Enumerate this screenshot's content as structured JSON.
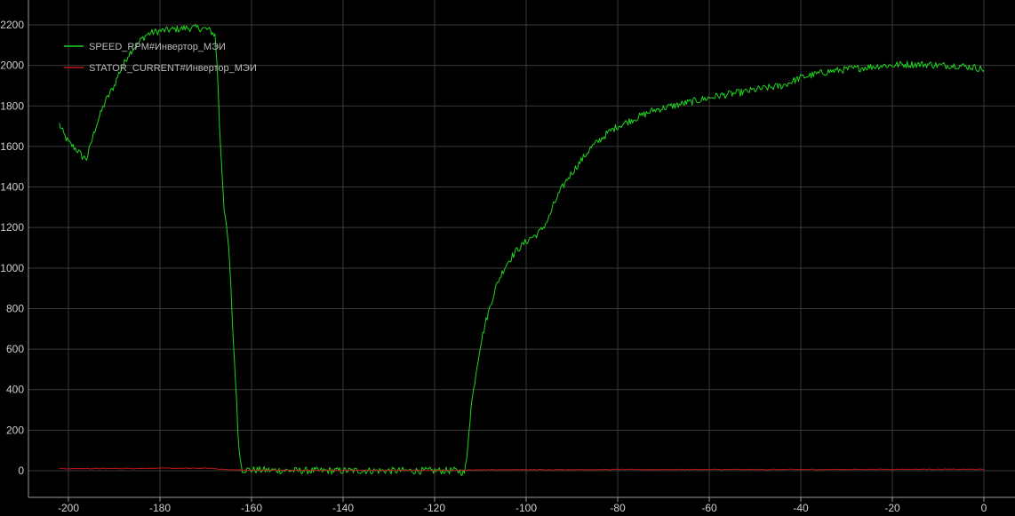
{
  "chart_data": {
    "type": "line",
    "title": "",
    "xlabel": "",
    "ylabel": "",
    "xlim": [
      -205,
      2
    ],
    "ylim": [
      -80,
      2260
    ],
    "x_ticks": [
      -200,
      -180,
      -160,
      -140,
      -120,
      -100,
      -80,
      -60,
      -40,
      -20,
      0
    ],
    "y_ticks": [
      0,
      200,
      400,
      600,
      800,
      1000,
      1200,
      1400,
      1600,
      1800,
      2000,
      2200
    ],
    "x_tick_labels": [
      "-200",
      "-180",
      "-160",
      "-140",
      "-120",
      "-100",
      "-80",
      "-60",
      "-40",
      "-20",
      "0"
    ],
    "y_tick_labels": [
      "0",
      "200",
      "400",
      "600",
      "800",
      "1000",
      "1200",
      "1400",
      "1600",
      "1800",
      "2000",
      "2200"
    ],
    "grid": true,
    "legend_position": "top-left",
    "series": [
      {
        "name": "SPEED_RPM#Инвертор_МЭИ",
        "color": "#1fd41f",
        "points": [
          [
            -202,
            1710
          ],
          [
            -201,
            1660
          ],
          [
            -200,
            1620
          ],
          [
            -199,
            1600
          ],
          [
            -198,
            1580
          ],
          [
            -197,
            1550
          ],
          [
            -196,
            1540
          ],
          [
            -195,
            1620
          ],
          [
            -194,
            1700
          ],
          [
            -193,
            1760
          ],
          [
            -192,
            1820
          ],
          [
            -191,
            1860
          ],
          [
            -190,
            1900
          ],
          [
            -189,
            1960
          ],
          [
            -188,
            2000
          ],
          [
            -187,
            2050
          ],
          [
            -186,
            2080
          ],
          [
            -185,
            2100
          ],
          [
            -184,
            2130
          ],
          [
            -183,
            2150
          ],
          [
            -182,
            2160
          ],
          [
            -180,
            2170
          ],
          [
            -178,
            2175
          ],
          [
            -176,
            2180
          ],
          [
            -174,
            2185
          ],
          [
            -172,
            2185
          ],
          [
            -170,
            2180
          ],
          [
            -169,
            2170
          ],
          [
            -168,
            2150
          ],
          [
            -167.5,
            2000
          ],
          [
            -167,
            1700
          ],
          [
            -166,
            1300
          ],
          [
            -165,
            1100
          ],
          [
            -164.5,
            900
          ],
          [
            -164,
            650
          ],
          [
            -163.5,
            450
          ],
          [
            -163,
            200
          ],
          [
            -162.5,
            60
          ],
          [
            -162,
            5
          ],
          [
            -150,
            0
          ],
          [
            -140,
            0
          ],
          [
            -130,
            0
          ],
          [
            -120,
            0
          ],
          [
            -115,
            0
          ],
          [
            -113.5,
            -10
          ],
          [
            -113,
            50
          ],
          [
            -112.5,
            200
          ],
          [
            -112,
            320
          ],
          [
            -111,
            480
          ],
          [
            -110,
            620
          ],
          [
            -109,
            720
          ],
          [
            -108,
            800
          ],
          [
            -107,
            880
          ],
          [
            -106,
            940
          ],
          [
            -105,
            990
          ],
          [
            -104,
            1030
          ],
          [
            -103,
            1060
          ],
          [
            -102,
            1090
          ],
          [
            -101,
            1110
          ],
          [
            -100,
            1130
          ],
          [
            -99,
            1150
          ],
          [
            -98,
            1160
          ],
          [
            -97,
            1180
          ],
          [
            -96,
            1210
          ],
          [
            -95,
            1250
          ],
          [
            -94,
            1310
          ],
          [
            -93,
            1360
          ],
          [
            -92,
            1400
          ],
          [
            -91,
            1440
          ],
          [
            -90,
            1470
          ],
          [
            -89,
            1500
          ],
          [
            -88,
            1530
          ],
          [
            -87,
            1560
          ],
          [
            -86,
            1590
          ],
          [
            -85,
            1610
          ],
          [
            -84,
            1630
          ],
          [
            -83,
            1650
          ],
          [
            -82,
            1670
          ],
          [
            -80,
            1700
          ],
          [
            -78,
            1720
          ],
          [
            -76,
            1740
          ],
          [
            -74,
            1760
          ],
          [
            -72,
            1780
          ],
          [
            -70,
            1790
          ],
          [
            -68,
            1800
          ],
          [
            -66,
            1810
          ],
          [
            -64,
            1820
          ],
          [
            -62,
            1830
          ],
          [
            -60,
            1840
          ],
          [
            -58,
            1850
          ],
          [
            -55,
            1860
          ],
          [
            -52,
            1870
          ],
          [
            -50,
            1880
          ],
          [
            -47,
            1890
          ],
          [
            -44,
            1900
          ],
          [
            -42,
            1920
          ],
          [
            -40,
            1940
          ],
          [
            -38,
            1950
          ],
          [
            -36,
            1960
          ],
          [
            -34,
            1970
          ],
          [
            -32,
            1975
          ],
          [
            -30,
            1980
          ],
          [
            -28,
            1985
          ],
          [
            -26,
            1990
          ],
          [
            -24,
            1995
          ],
          [
            -22,
            2000
          ],
          [
            -20,
            2000
          ],
          [
            -18,
            2005
          ],
          [
            -16,
            2005
          ],
          [
            -14,
            2005
          ],
          [
            -12,
            2005
          ],
          [
            -10,
            2000
          ],
          [
            -8,
            2000
          ],
          [
            -6,
            2000
          ],
          [
            -4,
            1995
          ],
          [
            -2,
            1990
          ],
          [
            0,
            1980
          ]
        ]
      },
      {
        "name": "STATOR_CURRENT#Инвертор_МЭИ",
        "color": "#c01818",
        "points": [
          [
            -202,
            10
          ],
          [
            -190,
            11
          ],
          [
            -180,
            12
          ],
          [
            -170,
            12
          ],
          [
            -168,
            10
          ],
          [
            -165,
            5
          ],
          [
            -160,
            3
          ],
          [
            -140,
            2
          ],
          [
            -120,
            2
          ],
          [
            -113,
            3
          ],
          [
            -110,
            5
          ],
          [
            -100,
            5
          ],
          [
            -80,
            6
          ],
          [
            -60,
            6
          ],
          [
            -40,
            6
          ],
          [
            -20,
            7
          ],
          [
            0,
            7
          ]
        ]
      }
    ]
  }
}
